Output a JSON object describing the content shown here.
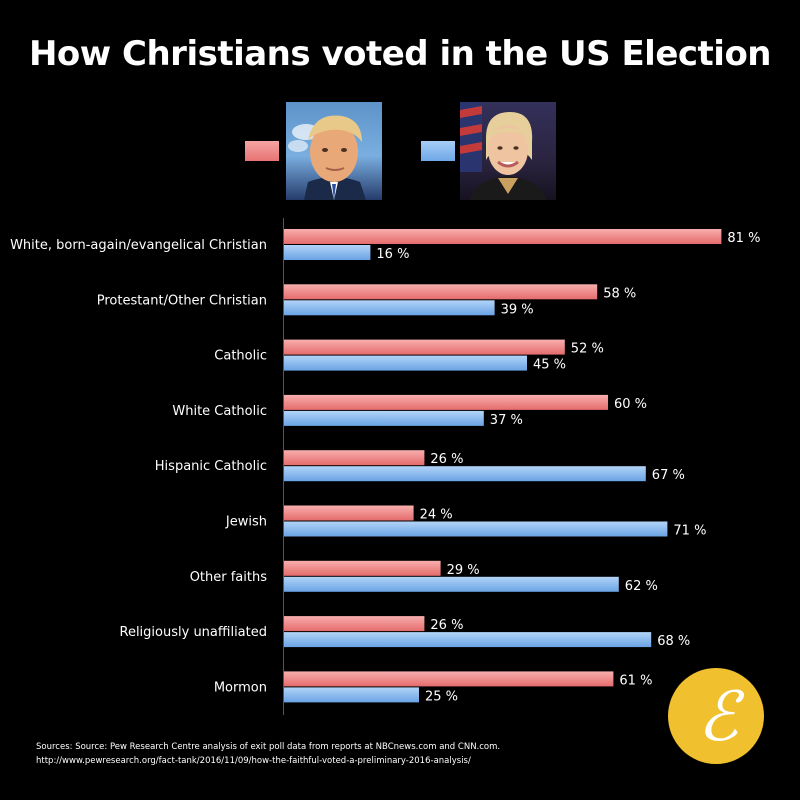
{
  "title": "How Christians voted in the US Election",
  "legend": {
    "series_a_icon": "portrait-photo-icon",
    "series_b_icon": "portrait-photo-icon"
  },
  "colors": {
    "background": "#000000",
    "series_a": "#ee7f7f",
    "series_b": "#80b4ec",
    "logo": "#f1c02e"
  },
  "chart_data": {
    "type": "bar",
    "orientation": "horizontal",
    "categories": [
      "White, born-again/evangelical Christian",
      "Protestant/Other Christian",
      "Catholic",
      "White Catholic",
      "Hispanic Catholic",
      "Jewish",
      "Other faiths",
      "Religiously unaffiliated",
      "Mormon"
    ],
    "series": [
      {
        "color": "#ee7f7f",
        "values": [
          81,
          58,
          52,
          60,
          26,
          24,
          29,
          26,
          61
        ]
      },
      {
        "color": "#80b4ec",
        "values": [
          16,
          39,
          45,
          37,
          67,
          71,
          62,
          68,
          25
        ]
      }
    ],
    "value_labels": {
      "series_a": [
        "81 %",
        "58 %",
        "52 %",
        "60 %",
        "26 %",
        "24 %",
        "29 %",
        "26 %",
        "61 %"
      ],
      "series_b": [
        "16 %",
        "39 %",
        "45 %",
        "37 %",
        "67 %",
        "71 %",
        "62 %",
        "68 %",
        "25 %"
      ]
    },
    "xlim": [
      0,
      100
    ],
    "grid": false,
    "title": "How Christians voted in the US Election",
    "xlabel": "",
    "ylabel": ""
  },
  "footer": {
    "sources_line1": "Sources: Source: Pew Research Centre analysis of exit poll data from reports at NBCnews.com and CNN.com.",
    "sources_line2": "http://www.pewresearch.org/fact-tank/2016/11/09/how-the-faithful-voted-a-preliminary-2016-analysis/"
  },
  "logo": {
    "letter": "ℰ",
    "icon": "epsilon-logo-icon"
  }
}
